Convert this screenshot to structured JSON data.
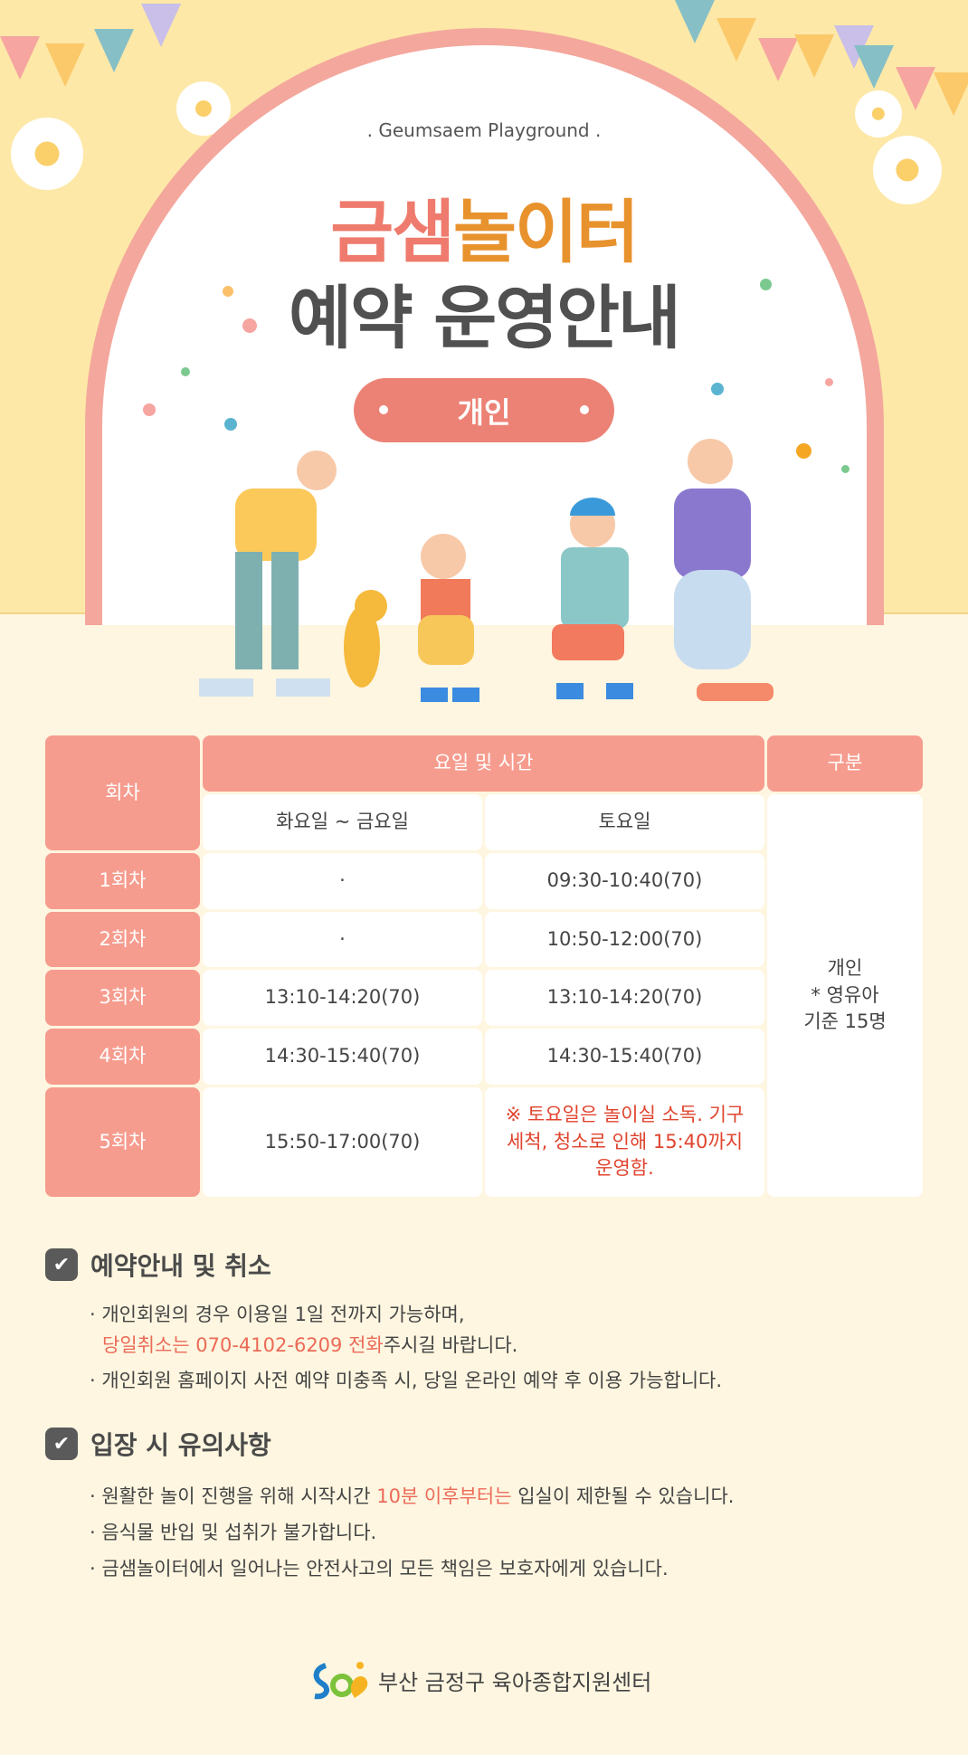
{
  "header": {
    "subtitle": ". Geumsaem Playground .",
    "title_part1": "금샘",
    "title_part2": "놀이터",
    "title_line2": "예약 운영안내",
    "badge": "개인"
  },
  "colors": {
    "pink": "#ee7b6d",
    "orange": "#e8922e",
    "header_cell": "#f69c8e",
    "badge": "#ec8275",
    "notice_red": "#e0442e"
  },
  "table": {
    "h_session": "회차",
    "h_daytime": "요일 및 시간",
    "h_type": "구분",
    "h_weekday": "화요일 ~ 금요일",
    "h_saturday": "토요일",
    "rows": [
      {
        "session": "1회차",
        "weekday": "·",
        "saturday": "09:30-10:40(70)"
      },
      {
        "session": "2회차",
        "weekday": "·",
        "saturday": "10:50-12:00(70)"
      },
      {
        "session": "3회차",
        "weekday": "13:10-14:20(70)",
        "saturday": "13:10-14:20(70)"
      },
      {
        "session": "4회차",
        "weekday": "14:30-15:40(70)",
        "saturday": "14:30-15:40(70)"
      },
      {
        "session": "5회차",
        "weekday": "15:50-17:00(70)",
        "saturday": "※ 토요일은 놀이실 소독. 기구세척, 청소로 인해 15:40까지 운영함."
      }
    ],
    "type_line1": "개인",
    "type_line2": "* 영유아",
    "type_line3": "기준 15명"
  },
  "section1": {
    "title": "예약안내 및 취소",
    "b1": "· 개인회원의 경우 이용일 1일 전까지 가능하며,",
    "b1_hl": "당일취소는 070-4102-6209 전화",
    "b1_rest": "주시길 바랍니다.",
    "b2": "· 개인회원 홈페이지 사전 예약 미충족 시, 당일 온라인 예약 후 이용 가능합니다."
  },
  "section2": {
    "title": "입장 시 유의사항",
    "b1_pre": "· 원활한 놀이 진행을 위해 시작시간 ",
    "b1_hl": "10분 이후부터는",
    "b1_post": " 입실이 제한될 수 있습니다.",
    "b2": "· 음식물 반입 및 섭취가 불가합니다.",
    "b3": "· 금샘놀이터에서 일어나는 안전사고의 모든 책임은 보호자에게 있습니다."
  },
  "footer": {
    "org": "부산 금정구 육아종합지원센터"
  }
}
